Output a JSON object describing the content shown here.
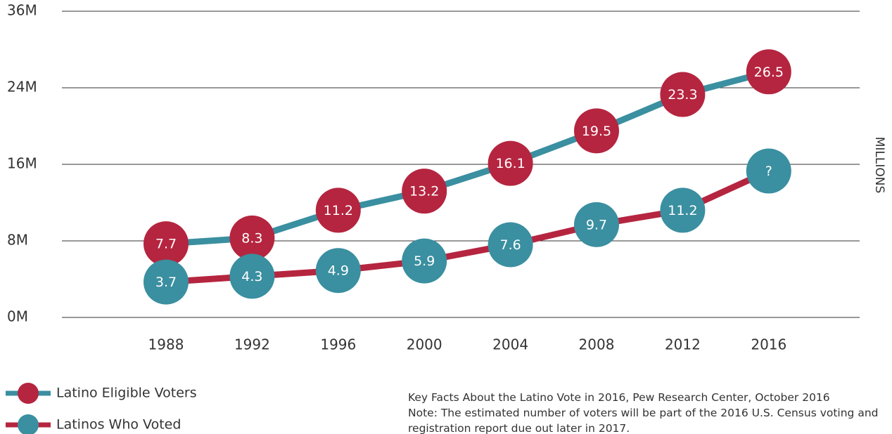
{
  "chart_data": {
    "type": "line",
    "categories": [
      "1988",
      "1992",
      "1996",
      "2000",
      "2004",
      "2008",
      "2012",
      "2016"
    ],
    "series": [
      {
        "name": "Latino Eligible Voters",
        "color": "#b5253f",
        "line_color": "#3a8fa0",
        "values": [
          7.7,
          8.3,
          11.2,
          13.2,
          16.1,
          19.5,
          23.3,
          26.5
        ]
      },
      {
        "name": "Latinos Who Voted",
        "color": "#3a8fa0",
        "line_color": "#b5253f",
        "values": [
          3.7,
          4.3,
          4.9,
          5.9,
          7.6,
          9.7,
          11.2,
          15.3
        ],
        "value_labels": [
          "3.7",
          "4.3",
          "4.9",
          "5.9",
          "7.6",
          "9.7",
          "11.2",
          "?"
        ]
      }
    ],
    "ylim": [
      0,
      36
    ],
    "yticks": [
      {
        "value": 0,
        "label": "0M"
      },
      {
        "value": 8,
        "label": "8M"
      },
      {
        "value": 16,
        "label": "16M"
      },
      {
        "value": 24,
        "label": "24M"
      },
      {
        "value": 36,
        "label": "36M"
      }
    ],
    "y_axis_label": "MILLIONS",
    "grid": true,
    "legend": "bottom-left",
    "source": "Key Facts About the Latino Vote in 2016, Pew Research Center, October 2016",
    "note": "Note: The estimated number of voters will be part of the 2016 U.S. Census voting and registration report due out later in 2017."
  }
}
